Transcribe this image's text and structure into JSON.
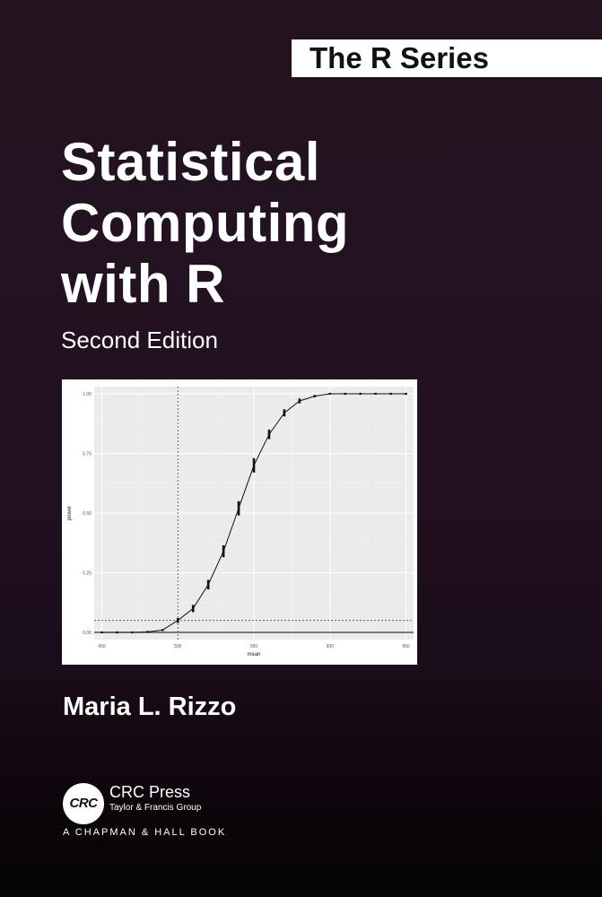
{
  "series": {
    "label": "The R Series"
  },
  "title": {
    "line1": "Statistical",
    "line2": "Computing",
    "line3": "with R"
  },
  "edition": "Second Edition",
  "author": "Maria L. Rizzo",
  "publisher": {
    "logo_text": "CRC",
    "name": "CRC Press",
    "tagline": "Taylor & Francis Group",
    "imprint": "A CHAPMAN & HALL BOOK"
  },
  "colors": {
    "background": "#24121f",
    "text": "#ffffff",
    "banner": "#ffffff",
    "plot_panel": "#ebebeb"
  },
  "chart_data": {
    "type": "line",
    "xlabel": "mean",
    "ylabel": "power",
    "xlim": [
      445,
      655
    ],
    "ylim": [
      -0.03,
      1.03
    ],
    "x_ticks": [
      450,
      500,
      550,
      600,
      650
    ],
    "y_ticks": [
      0.0,
      0.25,
      0.5,
      0.75,
      1.0
    ],
    "x_tick_labels": [
      "450",
      "500",
      "550",
      "600",
      "650"
    ],
    "y_tick_labels": [
      "0.00",
      "0.25",
      "0.50",
      "0.75",
      "1.00"
    ],
    "grid": true,
    "vline_x": 500,
    "hline_y": 0.05,
    "x": [
      450,
      460,
      470,
      480,
      490,
      500,
      510,
      520,
      530,
      540,
      550,
      560,
      570,
      580,
      590,
      600,
      610,
      620,
      630,
      640,
      650
    ],
    "y": [
      0.0,
      0.0,
      0.0,
      0.002,
      0.01,
      0.05,
      0.1,
      0.2,
      0.34,
      0.52,
      0.7,
      0.83,
      0.92,
      0.97,
      0.99,
      1.0,
      1.0,
      1.0,
      1.0,
      1.0,
      1.0
    ],
    "errors": [
      0.0,
      0.0,
      0.0,
      0.002,
      0.004,
      0.01,
      0.015,
      0.02,
      0.025,
      0.03,
      0.03,
      0.02,
      0.015,
      0.01,
      0.005,
      0.002,
      0.0,
      0.0,
      0.0,
      0.0,
      0.0
    ]
  }
}
